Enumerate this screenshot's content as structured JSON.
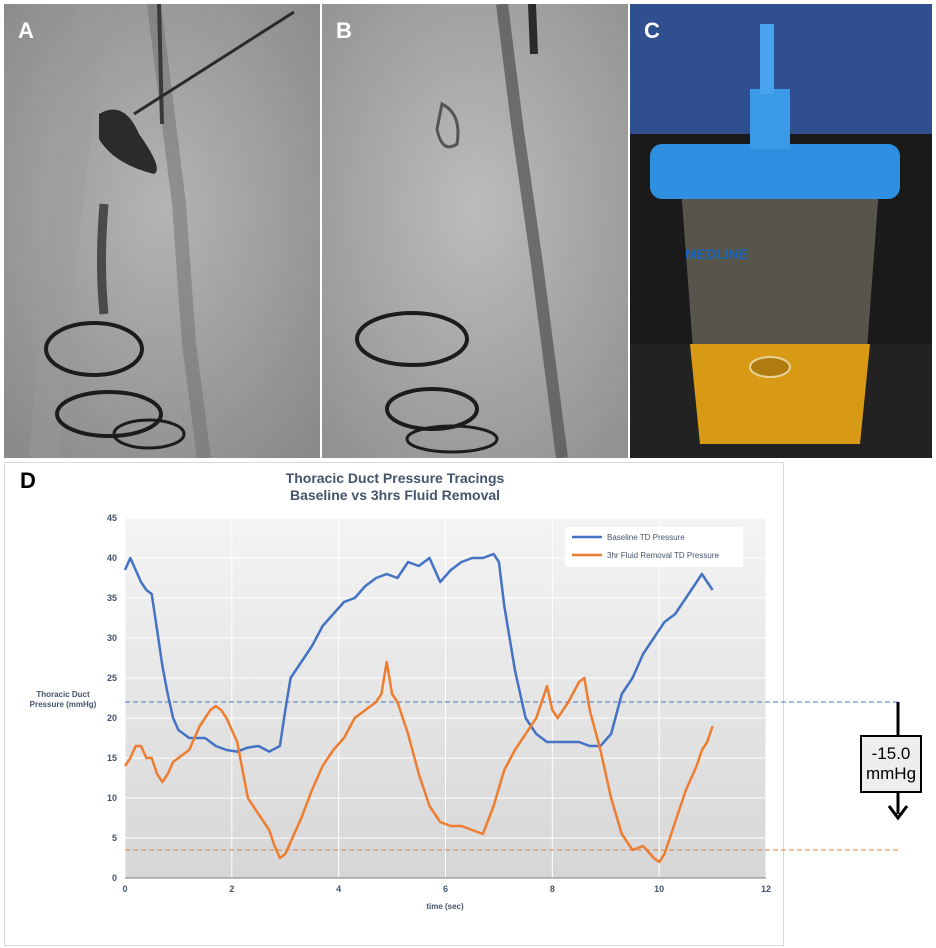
{
  "panels": {
    "a": {
      "letter": "A"
    },
    "b": {
      "letter": "B"
    },
    "c": {
      "letter": "C",
      "container_brand": "MEDLINE"
    },
    "d": {
      "letter": "D"
    }
  },
  "colors": {
    "baseline": "#4472c4",
    "fluid_removal": "#ed7d31",
    "title": "#44546a"
  },
  "pressure_change": {
    "value": "-15.0",
    "unit": "mmHg"
  },
  "chart_data": {
    "type": "line",
    "title": "Thoracic Duct Pressure Tracings",
    "subtitle": "Baseline vs 3hrs Fluid Removal",
    "xlabel": "time (sec)",
    "ylabel_line1": "Thoracic Duct",
    "ylabel_line2": "Pressure (mmHg)",
    "xlim": [
      0,
      12
    ],
    "ylim": [
      0,
      45
    ],
    "xticks": [
      "0",
      "2",
      "4",
      "6",
      "8",
      "10",
      "12"
    ],
    "yticks": [
      "0",
      "5",
      "10",
      "15",
      "20",
      "25",
      "30",
      "35",
      "40",
      "45"
    ],
    "grid": true,
    "legend_position": "top-right",
    "series": [
      {
        "name": "Baseline TD Pressure",
        "color": "#4472c4",
        "x": [
          0,
          0.1,
          0.2,
          0.3,
          0.4,
          0.5,
          0.6,
          0.7,
          0.8,
          0.9,
          1.0,
          1.1,
          1.2,
          1.3,
          1.5,
          1.7,
          1.9,
          2.1,
          2.3,
          2.5,
          2.7,
          2.9,
          3.0,
          3.1,
          3.3,
          3.5,
          3.7,
          3.9,
          4.1,
          4.3,
          4.5,
          4.7,
          4.9,
          5.1,
          5.3,
          5.5,
          5.7,
          5.9,
          6.1,
          6.3,
          6.5,
          6.7,
          6.9,
          7.0,
          7.1,
          7.3,
          7.5,
          7.7,
          7.9,
          8.1,
          8.3,
          8.5,
          8.7,
          8.9,
          9.1,
          9.3,
          9.5,
          9.7,
          9.9,
          10.1,
          10.3,
          10.5,
          10.7,
          10.8,
          10.9,
          11.0
        ],
        "y": [
          38.5,
          40,
          38.5,
          37,
          36,
          35.5,
          31,
          26.5,
          23,
          20,
          18.5,
          18,
          17.5,
          17.5,
          17.5,
          16.5,
          16,
          15.8,
          16.3,
          16.5,
          15.8,
          16.5,
          21,
          25,
          27,
          29,
          31.5,
          33,
          34.5,
          35,
          36.5,
          37.5,
          38,
          37.5,
          39.5,
          39,
          40,
          37,
          38.5,
          39.5,
          40,
          40,
          40.5,
          39.5,
          34,
          26,
          20,
          18,
          17,
          17,
          17,
          17,
          16.5,
          16.5,
          18,
          23,
          25,
          28,
          30,
          32,
          33,
          35,
          37,
          38,
          37,
          36
        ]
      },
      {
        "name": "3hr Fluid Removal TD Pressure",
        "color": "#ed7d31",
        "x": [
          0,
          0.1,
          0.2,
          0.3,
          0.4,
          0.5,
          0.6,
          0.7,
          0.8,
          0.9,
          1.0,
          1.2,
          1.4,
          1.6,
          1.7,
          1.8,
          1.9,
          2.0,
          2.1,
          2.2,
          2.3,
          2.5,
          2.7,
          2.8,
          2.9,
          3.0,
          3.1,
          3.3,
          3.5,
          3.7,
          3.9,
          4.1,
          4.3,
          4.5,
          4.7,
          4.8,
          4.9,
          5.0,
          5.1,
          5.3,
          5.5,
          5.7,
          5.9,
          6.1,
          6.3,
          6.5,
          6.7,
          6.9,
          7.1,
          7.3,
          7.5,
          7.7,
          7.8,
          7.9,
          8.0,
          8.1,
          8.3,
          8.5,
          8.6,
          8.7,
          8.9,
          9.1,
          9.3,
          9.5,
          9.7,
          9.9,
          10.0,
          10.1,
          10.3,
          10.5,
          10.7,
          10.8,
          10.9,
          11.0
        ],
        "y": [
          14,
          15,
          16.5,
          16.5,
          15,
          15,
          13,
          12,
          13,
          14.5,
          15,
          16,
          19,
          21,
          21.5,
          21,
          20,
          18.5,
          17,
          13.5,
          10,
          8,
          6,
          4,
          2.5,
          3,
          4.5,
          7.5,
          11,
          14,
          16,
          17.5,
          20,
          21,
          22,
          23,
          27,
          23,
          22,
          18,
          13,
          9,
          7,
          6.5,
          6.5,
          6,
          5.5,
          9,
          13.5,
          16,
          18,
          20,
          22,
          24,
          21,
          20,
          22,
          24.5,
          25,
          21,
          16,
          10,
          5.5,
          3.5,
          4,
          2.5,
          2,
          3,
          7,
          11,
          14,
          16,
          17,
          19
        ]
      }
    ],
    "reference_lines": [
      {
        "series": "Baseline TD Pressure",
        "y": 22
      },
      {
        "series": "3hr Fluid Removal TD Pressure",
        "y": 3.5
      }
    ]
  }
}
